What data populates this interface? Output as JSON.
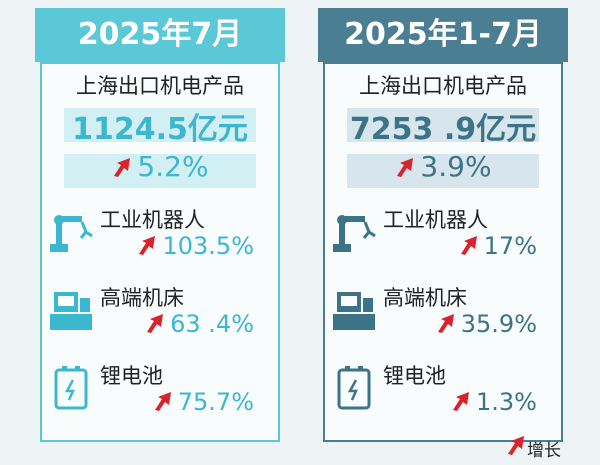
{
  "panels": [
    {
      "header": "2025年7月",
      "subject": "上海出口机电产品",
      "amount": "1124.5亿元",
      "growth": "5.2%",
      "items": [
        {
          "label": "工业机器人",
          "growth": "103.5%"
        },
        {
          "label": "高端机床",
          "growth": "63 .4%"
        },
        {
          "label": "锂电池",
          "growth": "75.7%"
        }
      ]
    },
    {
      "header": "2025年1-7月",
      "subject": "上海出口机电产品",
      "amount": "7253 .9亿元",
      "growth": "3.9%",
      "items": [
        {
          "label": "工业机器人",
          "growth": "17%"
        },
        {
          "label": "高端机床",
          "growth": "35.9%"
        },
        {
          "label": "锂电池",
          "growth": "1.3%"
        }
      ]
    }
  ],
  "legend": "增长"
}
